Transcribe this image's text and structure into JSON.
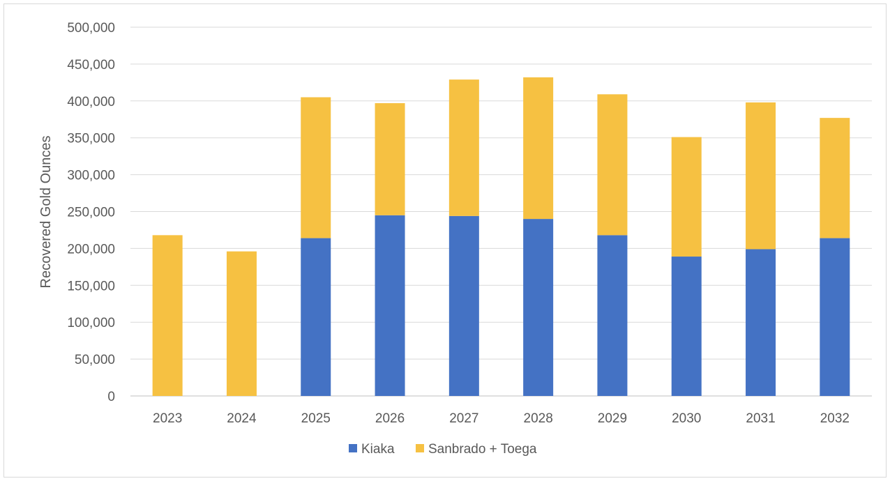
{
  "chart_data": {
    "type": "bar",
    "stacked": true,
    "title": "",
    "xlabel": "",
    "ylabel": "Recovered Gold Ounces",
    "ylim": [
      0,
      500000
    ],
    "yticks": [
      0,
      50000,
      100000,
      150000,
      200000,
      250000,
      300000,
      350000,
      400000,
      450000,
      500000
    ],
    "ytick_labels": [
      "0",
      "50,000",
      "100,000",
      "150,000",
      "200,000",
      "250,000",
      "300,000",
      "350,000",
      "400,000",
      "450,000",
      "500,000"
    ],
    "grid": true,
    "legend": "bottom",
    "categories": [
      "2023",
      "2024",
      "2025",
      "2026",
      "2027",
      "2028",
      "2029",
      "2030",
      "2031",
      "2032"
    ],
    "series": [
      {
        "name": "Kiaka",
        "color": "#4472c4",
        "values": [
          0,
          0,
          214000,
          245000,
          244000,
          240000,
          218000,
          189000,
          199000,
          214000
        ]
      },
      {
        "name": "Sanbrado + Toega",
        "color": "#f6c142",
        "values": [
          218000,
          196000,
          191000,
          152000,
          185000,
          192000,
          191000,
          162000,
          199000,
          163000
        ]
      }
    ]
  }
}
